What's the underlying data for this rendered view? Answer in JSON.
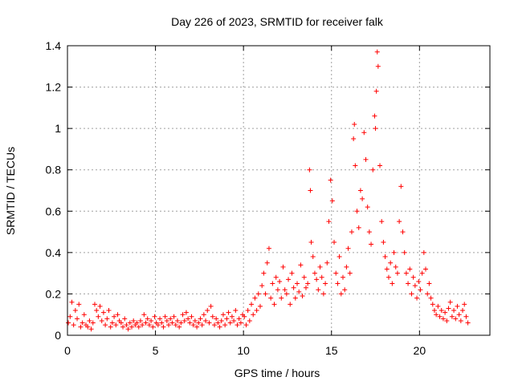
{
  "chart_data": {
    "type": "scatter",
    "title": "Day 226 of 2023, SRMTID for receiver falk",
    "xlabel": "GPS time / hours",
    "ylabel": "SRMTID / TECUs",
    "xlim": [
      0,
      24
    ],
    "ylim": [
      0,
      1.4
    ],
    "xticks": [
      0,
      5,
      10,
      15,
      20
    ],
    "xtick_labels": [
      "0",
      "5",
      "10",
      "15",
      "20"
    ],
    "yticks": [
      0,
      0.2,
      0.4,
      0.6,
      0.8,
      1,
      1.2,
      1.4
    ],
    "ytick_labels": [
      "0",
      "0.2",
      "0.4",
      "0.6",
      "0.8",
      "1",
      "1.2",
      "1.4"
    ],
    "grid": true,
    "marker": "+",
    "color": "#ff0000",
    "series": [
      {
        "name": "SRMTID",
        "points": [
          [
            0.05,
            0.06
          ],
          [
            0.15,
            0.09
          ],
          [
            0.25,
            0.16
          ],
          [
            0.35,
            0.05
          ],
          [
            0.45,
            0.12
          ],
          [
            0.55,
            0.08
          ],
          [
            0.65,
            0.15
          ],
          [
            0.75,
            0.04
          ],
          [
            0.85,
            0.06
          ],
          [
            0.95,
            0.1
          ],
          [
            1.05,
            0.05
          ],
          [
            1.15,
            0.04
          ],
          [
            1.25,
            0.07
          ],
          [
            1.35,
            0.03
          ],
          [
            1.45,
            0.06
          ],
          [
            1.55,
            0.15
          ],
          [
            1.65,
            0.12
          ],
          [
            1.75,
            0.09
          ],
          [
            1.85,
            0.14
          ],
          [
            1.95,
            0.07
          ],
          [
            2.05,
            0.11
          ],
          [
            2.15,
            0.05
          ],
          [
            2.25,
            0.08
          ],
          [
            2.35,
            0.12
          ],
          [
            2.45,
            0.04
          ],
          [
            2.55,
            0.06
          ],
          [
            2.65,
            0.09
          ],
          [
            2.75,
            0.05
          ],
          [
            2.85,
            0.1
          ],
          [
            2.95,
            0.07
          ],
          [
            3.05,
            0.06
          ],
          [
            3.15,
            0.04
          ],
          [
            3.25,
            0.08
          ],
          [
            3.35,
            0.05
          ],
          [
            3.45,
            0.03
          ],
          [
            3.55,
            0.06
          ],
          [
            3.65,
            0.04
          ],
          [
            3.75,
            0.07
          ],
          [
            3.85,
            0.05
          ],
          [
            3.95,
            0.06
          ],
          [
            4.05,
            0.04
          ],
          [
            4.15,
            0.07
          ],
          [
            4.25,
            0.05
          ],
          [
            4.35,
            0.1
          ],
          [
            4.45,
            0.06
          ],
          [
            4.55,
            0.08
          ],
          [
            4.65,
            0.05
          ],
          [
            4.75,
            0.07
          ],
          [
            4.85,
            0.04
          ],
          [
            4.95,
            0.09
          ],
          [
            5.05,
            0.06
          ],
          [
            5.15,
            0.05
          ],
          [
            5.25,
            0.08
          ],
          [
            5.35,
            0.06
          ],
          [
            5.45,
            0.04
          ],
          [
            5.55,
            0.09
          ],
          [
            5.65,
            0.07
          ],
          [
            5.75,
            0.05
          ],
          [
            5.85,
            0.08
          ],
          [
            5.95,
            0.06
          ],
          [
            6.05,
            0.09
          ],
          [
            6.15,
            0.05
          ],
          [
            6.25,
            0.07
          ],
          [
            6.35,
            0.04
          ],
          [
            6.45,
            0.06
          ],
          [
            6.55,
            0.1
          ],
          [
            6.65,
            0.07
          ],
          [
            6.75,
            0.11
          ],
          [
            6.85,
            0.08
          ],
          [
            6.95,
            0.06
          ],
          [
            7.05,
            0.09
          ],
          [
            7.15,
            0.05
          ],
          [
            7.25,
            0.07
          ],
          [
            7.35,
            0.04
          ],
          [
            7.45,
            0.06
          ],
          [
            7.55,
            0.08
          ],
          [
            7.65,
            0.05
          ],
          [
            7.75,
            0.1
          ],
          [
            7.85,
            0.07
          ],
          [
            7.95,
            0.12
          ],
          [
            8.05,
            0.06
          ],
          [
            8.15,
            0.14
          ],
          [
            8.25,
            0.09
          ],
          [
            8.35,
            0.05
          ],
          [
            8.45,
            0.08
          ],
          [
            8.55,
            0.06
          ],
          [
            8.65,
            0.04
          ],
          [
            8.75,
            0.07
          ],
          [
            8.85,
            0.1
          ],
          [
            8.95,
            0.05
          ],
          [
            9.05,
            0.08
          ],
          [
            9.15,
            0.11
          ],
          [
            9.25,
            0.06
          ],
          [
            9.35,
            0.09
          ],
          [
            9.45,
            0.07
          ],
          [
            9.55,
            0.12
          ],
          [
            9.65,
            0.05
          ],
          [
            9.75,
            0.08
          ],
          [
            9.85,
            0.06
          ],
          [
            9.95,
            0.1
          ],
          [
            10.05,
            0.09
          ],
          [
            10.15,
            0.05
          ],
          [
            10.25,
            0.12
          ],
          [
            10.35,
            0.07
          ],
          [
            10.45,
            0.15
          ],
          [
            10.55,
            0.1
          ],
          [
            10.65,
            0.18
          ],
          [
            10.75,
            0.12
          ],
          [
            10.85,
            0.2
          ],
          [
            10.95,
            0.14
          ],
          [
            11.05,
            0.24
          ],
          [
            11.15,
            0.3
          ],
          [
            11.25,
            0.2
          ],
          [
            11.35,
            0.35
          ],
          [
            11.45,
            0.42
          ],
          [
            11.55,
            0.18
          ],
          [
            11.65,
            0.25
          ],
          [
            11.75,
            0.15
          ],
          [
            11.85,
            0.28
          ],
          [
            11.95,
            0.22
          ],
          [
            12.05,
            0.26
          ],
          [
            12.15,
            0.18
          ],
          [
            12.25,
            0.33
          ],
          [
            12.35,
            0.22
          ],
          [
            12.45,
            0.2
          ],
          [
            12.55,
            0.27
          ],
          [
            12.65,
            0.15
          ],
          [
            12.75,
            0.3
          ],
          [
            12.85,
            0.23
          ],
          [
            12.95,
            0.18
          ],
          [
            13.05,
            0.25
          ],
          [
            13.15,
            0.21
          ],
          [
            13.25,
            0.34
          ],
          [
            13.35,
            0.19
          ],
          [
            13.45,
            0.28
          ],
          [
            13.55,
            0.23
          ],
          [
            13.65,
            0.25
          ],
          [
            13.75,
            0.8
          ],
          [
            13.8,
            0.7
          ],
          [
            13.85,
            0.45
          ],
          [
            13.95,
            0.38
          ],
          [
            14.05,
            0.3
          ],
          [
            14.15,
            0.27
          ],
          [
            14.25,
            0.22
          ],
          [
            14.35,
            0.33
          ],
          [
            14.45,
            0.28
          ],
          [
            14.55,
            0.2
          ],
          [
            14.65,
            0.25
          ],
          [
            14.75,
            0.35
          ],
          [
            14.85,
            0.55
          ],
          [
            14.95,
            0.75
          ],
          [
            15.05,
            0.65
          ],
          [
            15.15,
            0.45
          ],
          [
            15.25,
            0.3
          ],
          [
            15.35,
            0.25
          ],
          [
            15.45,
            0.38
          ],
          [
            15.55,
            0.2
          ],
          [
            15.65,
            0.28
          ],
          [
            15.75,
            0.22
          ],
          [
            15.85,
            0.33
          ],
          [
            15.95,
            0.42
          ],
          [
            16.05,
            0.3
          ],
          [
            16.15,
            0.5
          ],
          [
            16.25,
            0.95
          ],
          [
            16.3,
            1.02
          ],
          [
            16.35,
            0.82
          ],
          [
            16.45,
            0.6
          ],
          [
            16.55,
            0.52
          ],
          [
            16.65,
            0.7
          ],
          [
            16.75,
            0.66
          ],
          [
            16.85,
            0.98
          ],
          [
            16.95,
            0.85
          ],
          [
            17.05,
            0.62
          ],
          [
            17.15,
            0.5
          ],
          [
            17.25,
            0.44
          ],
          [
            17.35,
            0.8
          ],
          [
            17.45,
            1.06
          ],
          [
            17.5,
            1.0
          ],
          [
            17.55,
            1.18
          ],
          [
            17.6,
            1.37
          ],
          [
            17.65,
            1.3
          ],
          [
            17.75,
            0.82
          ],
          [
            17.85,
            0.55
          ],
          [
            17.95,
            0.45
          ],
          [
            18.05,
            0.38
          ],
          [
            18.15,
            0.32
          ],
          [
            18.25,
            0.28
          ],
          [
            18.35,
            0.35
          ],
          [
            18.45,
            0.25
          ],
          [
            18.55,
            0.4
          ],
          [
            18.65,
            0.33
          ],
          [
            18.75,
            0.3
          ],
          [
            18.85,
            0.55
          ],
          [
            18.95,
            0.72
          ],
          [
            19.05,
            0.5
          ],
          [
            19.15,
            0.4
          ],
          [
            19.25,
            0.3
          ],
          [
            19.35,
            0.25
          ],
          [
            19.45,
            0.32
          ],
          [
            19.55,
            0.2
          ],
          [
            19.65,
            0.28
          ],
          [
            19.75,
            0.24
          ],
          [
            19.85,
            0.18
          ],
          [
            19.95,
            0.26
          ],
          [
            20.05,
            0.22
          ],
          [
            20.15,
            0.3
          ],
          [
            20.25,
            0.4
          ],
          [
            20.35,
            0.32
          ],
          [
            20.45,
            0.2
          ],
          [
            20.55,
            0.25
          ],
          [
            20.65,
            0.18
          ],
          [
            20.75,
            0.15
          ],
          [
            20.85,
            0.12
          ],
          [
            20.95,
            0.1
          ],
          [
            21.05,
            0.14
          ],
          [
            21.15,
            0.09
          ],
          [
            21.25,
            0.12
          ],
          [
            21.35,
            0.08
          ],
          [
            21.45,
            0.11
          ],
          [
            21.55,
            0.07
          ],
          [
            21.65,
            0.13
          ],
          [
            21.75,
            0.16
          ],
          [
            21.85,
            0.09
          ],
          [
            21.95,
            0.12
          ],
          [
            22.05,
            0.08
          ],
          [
            22.15,
            0.14
          ],
          [
            22.25,
            0.1
          ],
          [
            22.35,
            0.07
          ],
          [
            22.45,
            0.12
          ],
          [
            22.55,
            0.15
          ],
          [
            22.65,
            0.09
          ],
          [
            22.75,
            0.06
          ]
        ]
      }
    ]
  }
}
